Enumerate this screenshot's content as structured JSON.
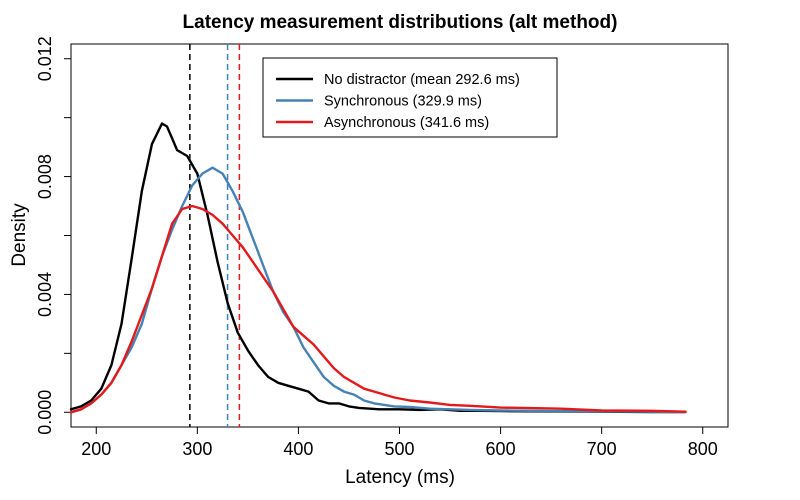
{
  "chart_data": {
    "type": "line",
    "title": "Latency measurement distributions (alt method)",
    "xlabel": "Latency (ms)",
    "ylabel": "Density",
    "xlim": [
      175,
      825
    ],
    "ylim": [
      -0.0005,
      0.0125
    ],
    "x_ticks": [
      200,
      300,
      400,
      500,
      600,
      700,
      800
    ],
    "x_tick_labels": [
      "200",
      "300",
      "400",
      "500",
      "600",
      "700",
      "800"
    ],
    "y_ticks": [
      0.0,
      0.002,
      0.004,
      0.006,
      0.008,
      0.01,
      0.012
    ],
    "y_tick_labels": [
      "0.000",
      "",
      "0.004",
      "",
      "0.008",
      "",
      "0.012"
    ],
    "grid": false,
    "legend_position": "top-center",
    "series": [
      {
        "name": "No distractor (mean 292.6 ms)",
        "color": "#000000",
        "mean": 292.6,
        "points": [
          [
            175,
            0.0001
          ],
          [
            185,
            0.0002
          ],
          [
            195,
            0.0004
          ],
          [
            205,
            0.0008
          ],
          [
            215,
            0.0016
          ],
          [
            225,
            0.003
          ],
          [
            235,
            0.0052
          ],
          [
            245,
            0.0075
          ],
          [
            255,
            0.0091
          ],
          [
            265,
            0.0098
          ],
          [
            270,
            0.0097
          ],
          [
            275,
            0.0093
          ],
          [
            280,
            0.0089
          ],
          [
            290,
            0.0087
          ],
          [
            300,
            0.0081
          ],
          [
            310,
            0.0067
          ],
          [
            320,
            0.0051
          ],
          [
            330,
            0.0037
          ],
          [
            340,
            0.0027
          ],
          [
            350,
            0.0021
          ],
          [
            360,
            0.0016
          ],
          [
            370,
            0.0012
          ],
          [
            380,
            0.001
          ],
          [
            390,
            0.0009
          ],
          [
            400,
            0.0008
          ],
          [
            410,
            0.0007
          ],
          [
            420,
            0.0004
          ],
          [
            430,
            0.0003
          ],
          [
            440,
            0.0003
          ],
          [
            450,
            0.0002
          ],
          [
            460,
            0.00015
          ],
          [
            480,
            0.0001
          ],
          [
            500,
            0.0001
          ],
          [
            520,
            8e-05
          ],
          [
            540,
            0.0001
          ],
          [
            560,
            5e-05
          ],
          [
            580,
            5e-05
          ],
          [
            600,
            4e-05
          ],
          [
            650,
            3e-05
          ],
          [
            700,
            2e-05
          ],
          [
            750,
            1e-05
          ],
          [
            783,
            1e-05
          ]
        ]
      },
      {
        "name": "Synchronous (329.9 ms)",
        "color": "#4682B4",
        "mean": 329.9,
        "points": [
          [
            175,
            0.0
          ],
          [
            185,
            0.0001
          ],
          [
            195,
            0.0003
          ],
          [
            205,
            0.0006
          ],
          [
            215,
            0.001
          ],
          [
            225,
            0.0016
          ],
          [
            235,
            0.0022
          ],
          [
            245,
            0.003
          ],
          [
            255,
            0.0042
          ],
          [
            265,
            0.0053
          ],
          [
            275,
            0.0062
          ],
          [
            285,
            0.007
          ],
          [
            295,
            0.0077
          ],
          [
            305,
            0.0081
          ],
          [
            315,
            0.0083
          ],
          [
            325,
            0.0081
          ],
          [
            335,
            0.0075
          ],
          [
            345,
            0.0068
          ],
          [
            355,
            0.0059
          ],
          [
            365,
            0.005
          ],
          [
            375,
            0.0041
          ],
          [
            385,
            0.0034
          ],
          [
            395,
            0.0029
          ],
          [
            405,
            0.0022
          ],
          [
            415,
            0.0017
          ],
          [
            425,
            0.0012
          ],
          [
            435,
            0.0009
          ],
          [
            445,
            0.0007
          ],
          [
            455,
            0.0006
          ],
          [
            465,
            0.0004
          ],
          [
            475,
            0.0003
          ],
          [
            485,
            0.00025
          ],
          [
            495,
            0.0002
          ],
          [
            510,
            0.00018
          ],
          [
            530,
            0.00012
          ],
          [
            550,
            0.0001
          ],
          [
            570,
            8e-05
          ],
          [
            600,
            6e-05
          ],
          [
            650,
            4e-05
          ],
          [
            700,
            3e-05
          ],
          [
            750,
            2e-05
          ],
          [
            783,
            1e-05
          ]
        ]
      },
      {
        "name": "Asynchronous (341.6 ms)",
        "color": "#E31A1C",
        "mean": 341.6,
        "points": [
          [
            175,
            0.0
          ],
          [
            185,
            0.0001
          ],
          [
            195,
            0.0003
          ],
          [
            205,
            0.0006
          ],
          [
            215,
            0.001
          ],
          [
            225,
            0.0016
          ],
          [
            235,
            0.0024
          ],
          [
            245,
            0.0033
          ],
          [
            255,
            0.0042
          ],
          [
            265,
            0.0053
          ],
          [
            275,
            0.0064
          ],
          [
            285,
            0.0069
          ],
          [
            295,
            0.007
          ],
          [
            305,
            0.0069
          ],
          [
            315,
            0.0067
          ],
          [
            325,
            0.0064
          ],
          [
            335,
            0.006
          ],
          [
            345,
            0.0056
          ],
          [
            355,
            0.0051
          ],
          [
            365,
            0.0046
          ],
          [
            375,
            0.0041
          ],
          [
            385,
            0.0035
          ],
          [
            395,
            0.0029
          ],
          [
            405,
            0.0026
          ],
          [
            415,
            0.0023
          ],
          [
            425,
            0.0019
          ],
          [
            435,
            0.0015
          ],
          [
            445,
            0.0012
          ],
          [
            455,
            0.001
          ],
          [
            465,
            0.0008
          ],
          [
            475,
            0.0007
          ],
          [
            485,
            0.0006
          ],
          [
            495,
            0.0005
          ],
          [
            510,
            0.0004
          ],
          [
            530,
            0.00033
          ],
          [
            550,
            0.00025
          ],
          [
            570,
            0.00022
          ],
          [
            600,
            0.00016
          ],
          [
            630,
            0.00014
          ],
          [
            660,
            0.00012
          ],
          [
            700,
            6e-05
          ],
          [
            750,
            5e-05
          ],
          [
            783,
            2e-05
          ]
        ]
      }
    ]
  }
}
